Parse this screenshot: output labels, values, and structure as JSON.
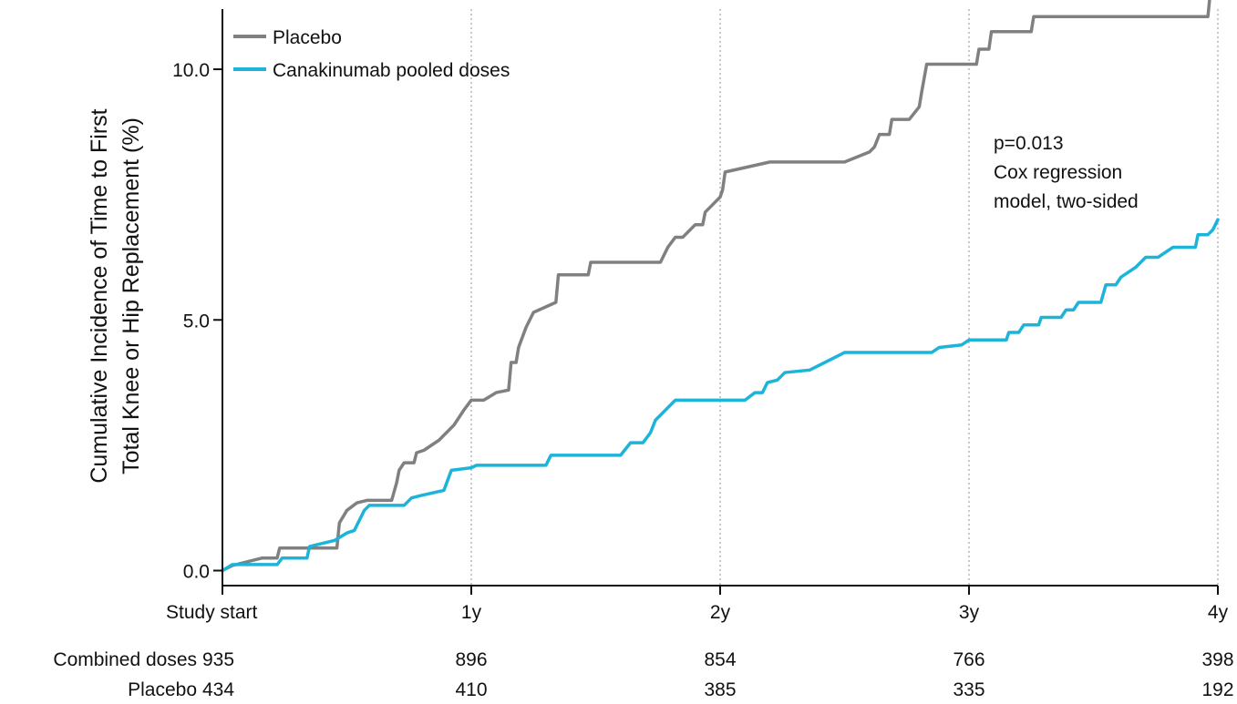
{
  "chart_data": {
    "type": "line",
    "title": "",
    "ylabel_lines": [
      "Cumulative Incidence of Time to First",
      "Total Knee or Hip Replacement (%)"
    ],
    "xlabel": "",
    "x_unit": "years",
    "xlim": [
      0,
      4
    ],
    "ylim": [
      -0.3,
      11.2
    ],
    "x_ticks": [
      0,
      1,
      2,
      3,
      4
    ],
    "x_tick_labels": [
      "Study start",
      "1y",
      "2y",
      "3y",
      "4y"
    ],
    "y_ticks": [
      0,
      5,
      10
    ],
    "y_tick_labels": [
      "0.0",
      "5.0",
      "10.0"
    ],
    "grid": "vertical dotted lines at 1y, 2y, 3y, 4y",
    "legend_position": "top-left",
    "series": [
      {
        "name": "Placebo",
        "color": "#808080",
        "step": true,
        "points": [
          [
            0,
            0
          ],
          [
            0.04,
            0.1
          ],
          [
            0.12,
            0.2
          ],
          [
            0.16,
            0.25
          ],
          [
            0.22,
            0.25
          ],
          [
            0.23,
            0.45
          ],
          [
            0.46,
            0.45
          ],
          [
            0.47,
            0.95
          ],
          [
            0.5,
            1.2
          ],
          [
            0.54,
            1.35
          ],
          [
            0.58,
            1.4
          ],
          [
            0.68,
            1.4
          ],
          [
            0.7,
            1.75
          ],
          [
            0.71,
            2.0
          ],
          [
            0.73,
            2.15
          ],
          [
            0.77,
            2.15
          ],
          [
            0.78,
            2.35
          ],
          [
            0.81,
            2.4
          ],
          [
            0.87,
            2.6
          ],
          [
            0.93,
            2.9
          ],
          [
            0.97,
            3.2
          ],
          [
            1.0,
            3.4
          ],
          [
            1.05,
            3.4
          ],
          [
            1.1,
            3.55
          ],
          [
            1.15,
            3.6
          ],
          [
            1.16,
            4.15
          ],
          [
            1.18,
            4.15
          ],
          [
            1.19,
            4.45
          ],
          [
            1.22,
            4.85
          ],
          [
            1.25,
            5.15
          ],
          [
            1.34,
            5.35
          ],
          [
            1.35,
            5.9
          ],
          [
            1.47,
            5.9
          ],
          [
            1.48,
            6.15
          ],
          [
            1.76,
            6.15
          ],
          [
            1.79,
            6.45
          ],
          [
            1.82,
            6.65
          ],
          [
            1.85,
            6.65
          ],
          [
            1.88,
            6.8
          ],
          [
            1.9,
            6.9
          ],
          [
            1.93,
            6.9
          ],
          [
            1.94,
            7.15
          ],
          [
            1.97,
            7.3
          ],
          [
            2.0,
            7.45
          ],
          [
            2.01,
            7.6
          ],
          [
            2.02,
            7.95
          ],
          [
            2.2,
            8.15
          ],
          [
            2.5,
            8.15
          ],
          [
            2.6,
            8.35
          ],
          [
            2.62,
            8.45
          ],
          [
            2.64,
            8.7
          ],
          [
            2.68,
            8.7
          ],
          [
            2.69,
            9.0
          ],
          [
            2.76,
            9.0
          ],
          [
            2.8,
            9.25
          ],
          [
            2.81,
            9.55
          ],
          [
            2.83,
            10.1
          ],
          [
            3.03,
            10.1
          ],
          [
            3.04,
            10.4
          ],
          [
            3.08,
            10.4
          ],
          [
            3.09,
            10.75
          ],
          [
            3.25,
            10.75
          ],
          [
            3.26,
            11.05
          ],
          [
            3.96,
            11.05
          ],
          [
            3.97,
            11.55
          ],
          [
            4.0,
            11.55
          ]
        ]
      },
      {
        "name": "Canakinumab pooled doses",
        "color": "#1CB4D8",
        "step": true,
        "points": [
          [
            0,
            0
          ],
          [
            0.04,
            0.12
          ],
          [
            0.11,
            0.12
          ],
          [
            0.12,
            0.12
          ],
          [
            0.16,
            0.12
          ],
          [
            0.17,
            0.12
          ],
          [
            0.2,
            0.12
          ],
          [
            0.22,
            0.12
          ],
          [
            0.24,
            0.25
          ],
          [
            0.34,
            0.25
          ],
          [
            0.35,
            0.48
          ],
          [
            0.45,
            0.6
          ],
          [
            0.5,
            0.75
          ],
          [
            0.53,
            0.8
          ],
          [
            0.55,
            1.0
          ],
          [
            0.57,
            1.2
          ],
          [
            0.59,
            1.3
          ],
          [
            0.62,
            1.3
          ],
          [
            0.73,
            1.3
          ],
          [
            0.76,
            1.45
          ],
          [
            0.8,
            1.5
          ],
          [
            0.89,
            1.6
          ],
          [
            0.92,
            2.0
          ],
          [
            1.0,
            2.05
          ],
          [
            1.02,
            2.1
          ],
          [
            1.3,
            2.1
          ],
          [
            1.32,
            2.3
          ],
          [
            1.6,
            2.3
          ],
          [
            1.64,
            2.55
          ],
          [
            1.69,
            2.55
          ],
          [
            1.72,
            2.75
          ],
          [
            1.74,
            3.0
          ],
          [
            1.78,
            3.2
          ],
          [
            1.82,
            3.4
          ],
          [
            2.1,
            3.4
          ],
          [
            2.14,
            3.55
          ],
          [
            2.17,
            3.55
          ],
          [
            2.19,
            3.75
          ],
          [
            2.23,
            3.8
          ],
          [
            2.26,
            3.95
          ],
          [
            2.36,
            4.0
          ],
          [
            2.5,
            4.35
          ],
          [
            2.85,
            4.35
          ],
          [
            2.88,
            4.45
          ],
          [
            2.97,
            4.5
          ],
          [
            3.0,
            4.6
          ],
          [
            3.15,
            4.6
          ],
          [
            3.16,
            4.75
          ],
          [
            3.2,
            4.75
          ],
          [
            3.22,
            4.9
          ],
          [
            3.28,
            4.9
          ],
          [
            3.29,
            5.05
          ],
          [
            3.37,
            5.05
          ],
          [
            3.39,
            5.2
          ],
          [
            3.42,
            5.2
          ],
          [
            3.44,
            5.35
          ],
          [
            3.53,
            5.35
          ],
          [
            3.55,
            5.7
          ],
          [
            3.59,
            5.7
          ],
          [
            3.61,
            5.85
          ],
          [
            3.64,
            5.95
          ],
          [
            3.67,
            6.05
          ],
          [
            3.71,
            6.25
          ],
          [
            3.76,
            6.25
          ],
          [
            3.82,
            6.45
          ],
          [
            3.91,
            6.45
          ],
          [
            3.92,
            6.7
          ],
          [
            3.96,
            6.7
          ],
          [
            3.98,
            6.8
          ],
          [
            4.0,
            7.0
          ]
        ]
      }
    ],
    "annotation": [
      "p=0.013",
      "Cox regression",
      "model, two-sided"
    ],
    "risk_table": {
      "rows": [
        {
          "label": "Combined doses",
          "values": [
            935,
            896,
            854,
            766,
            398
          ]
        },
        {
          "label": "Placebo",
          "values": [
            434,
            410,
            385,
            335,
            192
          ]
        }
      ]
    },
    "colors": {
      "axis": "#111111",
      "grid": "#b5b5b5"
    }
  }
}
